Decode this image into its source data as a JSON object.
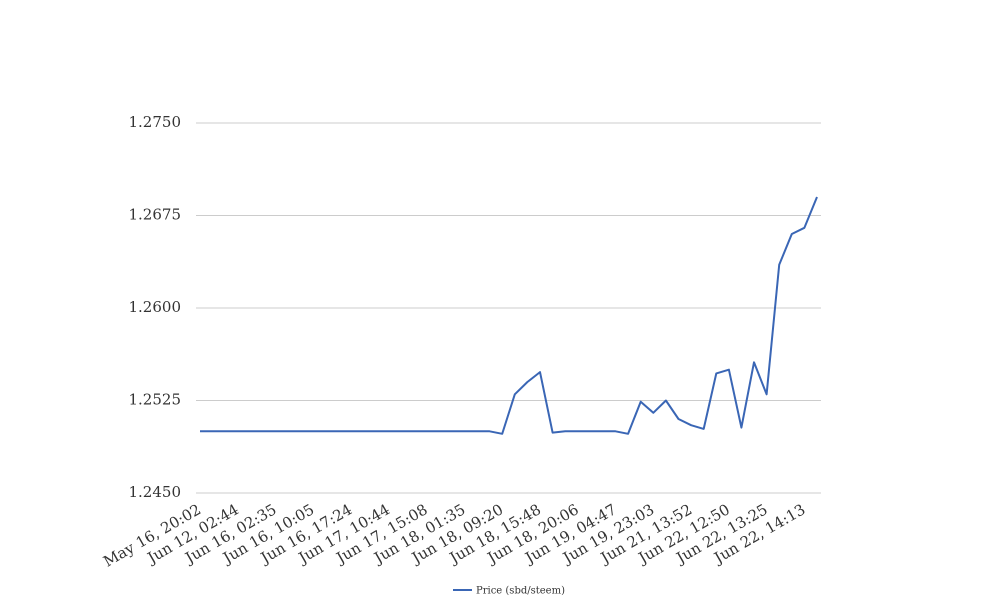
{
  "chart_data": {
    "type": "line",
    "categories": [
      "May 16, 20:02",
      null,
      null,
      "Jun 12, 02:44",
      null,
      null,
      "Jun 16, 02:35",
      null,
      null,
      "Jun 16, 10:05",
      null,
      null,
      "Jun 16, 17:24",
      null,
      null,
      "Jun 17, 10:44",
      null,
      null,
      "Jun 17, 15:08",
      null,
      null,
      "Jun 18, 01:35",
      null,
      null,
      "Jun 18, 09:20",
      null,
      null,
      "Jun 18, 15:48",
      null,
      null,
      "Jun 18, 20:06",
      null,
      null,
      "Jun 19, 04:47",
      null,
      null,
      "Jun 19, 23:03",
      null,
      null,
      "Jun 21, 13:52",
      null,
      null,
      "Jun 22, 12:50",
      null,
      null,
      "Jun 22, 13:25",
      null,
      null,
      "Jun 22, 14:13",
      null
    ],
    "series": [
      {
        "name": "Price (sbd/steem)",
        "color": "#3a66b5",
        "values": [
          1.25,
          1.25,
          1.25,
          1.25,
          1.25,
          1.25,
          1.25,
          1.25,
          1.25,
          1.25,
          1.25,
          1.25,
          1.25,
          1.25,
          1.25,
          1.25,
          1.25,
          1.25,
          1.25,
          1.25,
          1.25,
          1.25,
          1.25,
          1.25,
          1.2498,
          1.253,
          1.254,
          1.2548,
          1.2499,
          1.25,
          1.25,
          1.25,
          1.25,
          1.25,
          1.2498,
          1.2524,
          1.2515,
          1.2525,
          1.251,
          1.2505,
          1.2502,
          1.2547,
          1.255,
          1.2503,
          1.2556,
          1.253,
          1.2635,
          1.266,
          1.2665,
          1.269
        ]
      }
    ],
    "ylim": [
      1.245,
      1.275
    ],
    "yticks": [
      {
        "value": 1.245,
        "label": "1.2450"
      },
      {
        "value": 1.2525,
        "label": "1.2525"
      },
      {
        "value": 1.26,
        "label": "1.2600"
      },
      {
        "value": 1.2675,
        "label": "1.2675"
      },
      {
        "value": 1.275,
        "label": "1.2750"
      }
    ],
    "grid": true,
    "legend": "bottom"
  }
}
